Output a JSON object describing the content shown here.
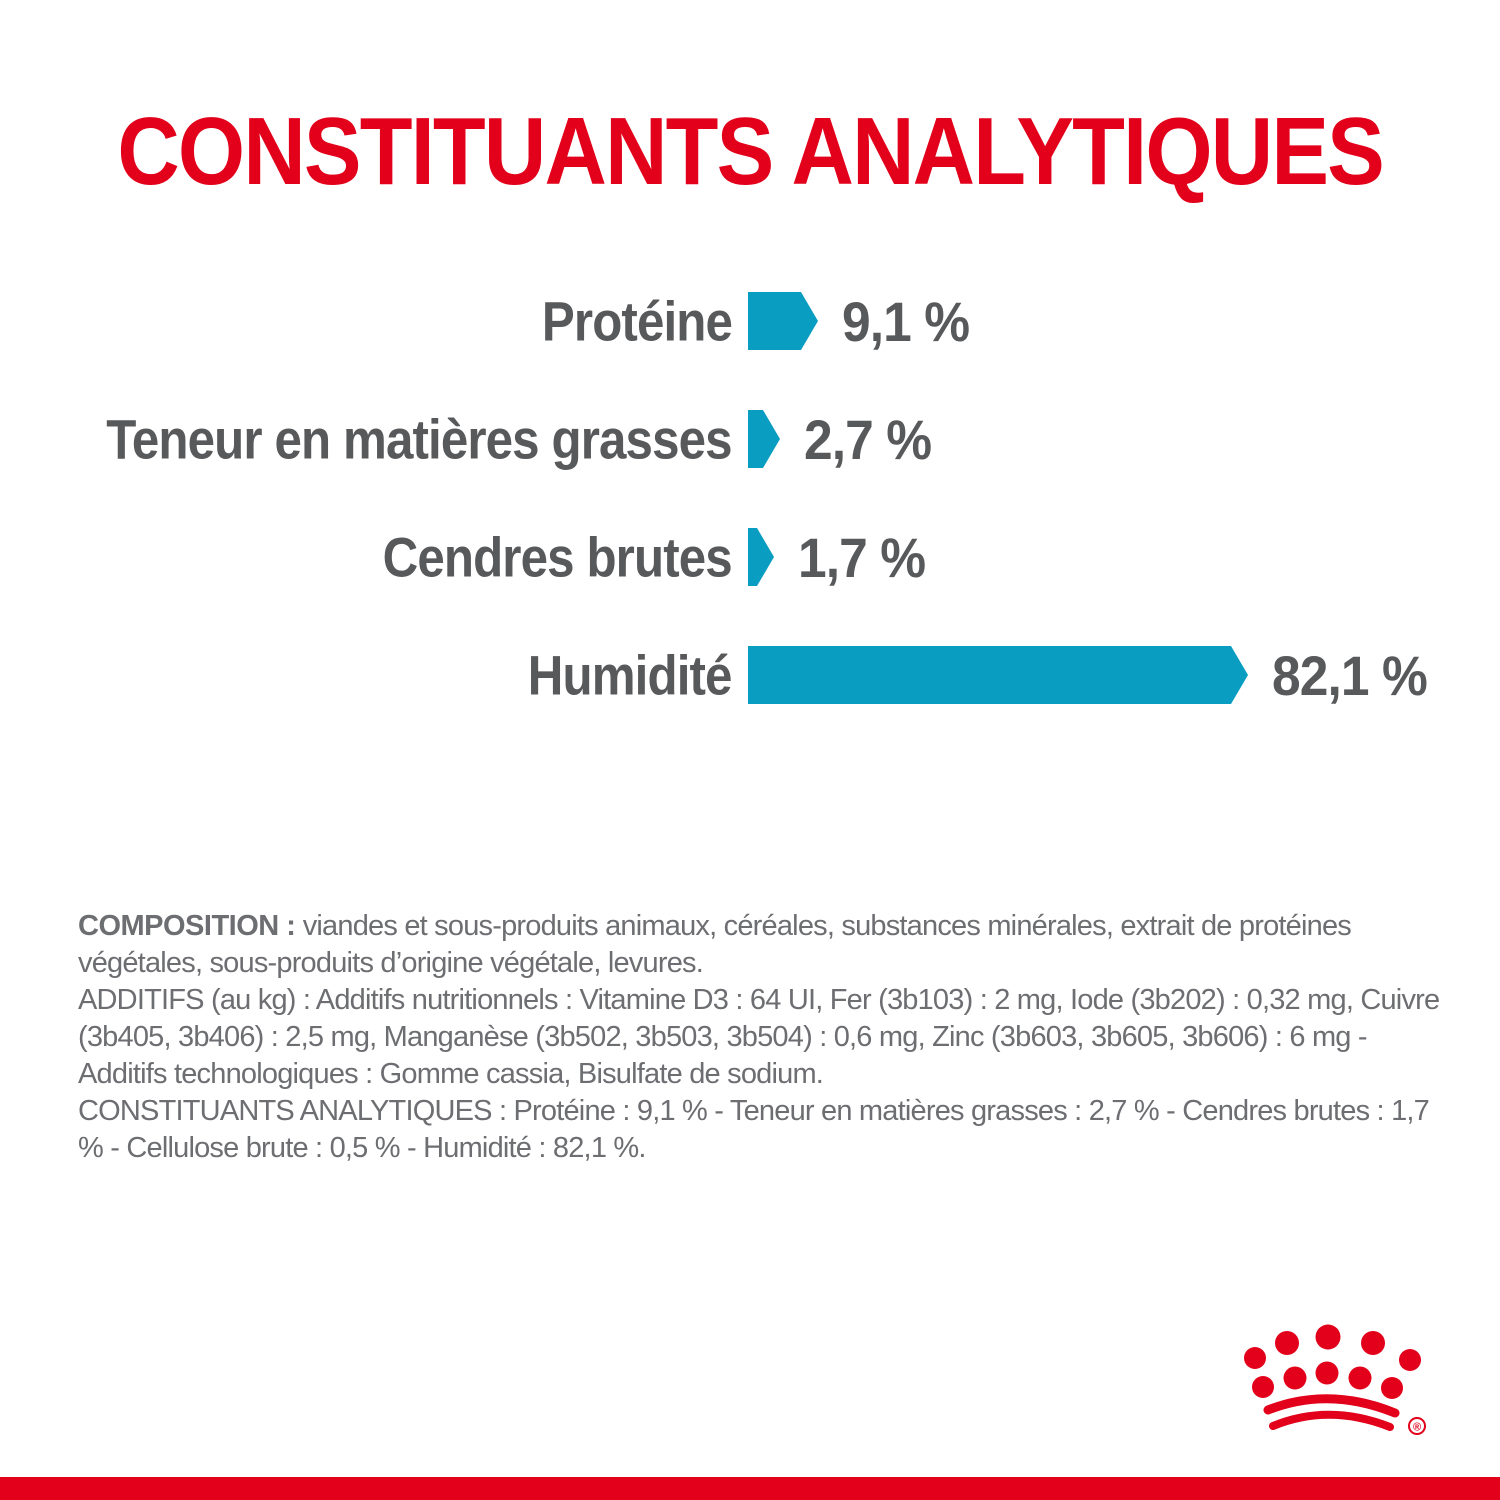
{
  "title": "CONSTITUANTS ANALYTIQUES",
  "chart_data": {
    "type": "bar",
    "orientation": "horizontal",
    "title": "CONSTITUANTS ANALYTIQUES",
    "categories": [
      "Protéine",
      "Teneur en matières grasses",
      "Cendres brutes",
      "Humidité"
    ],
    "values": [
      9.1,
      2.7,
      1.7,
      82.1
    ],
    "value_labels": [
      "9,1 %",
      "2,7 %",
      "1,7 %",
      "82,1 %"
    ],
    "unit": "%",
    "xlim": [
      0,
      100
    ],
    "grid": false,
    "legend": false,
    "bar_color": "#0a9dc2"
  },
  "info": {
    "composition_label": "COMPOSITION :",
    "composition_text": " viandes et sous-produits animaux, céréales, substances minérales, extrait de protéines végétales, sous-produits d’origine végétale, levures.",
    "additifs_text": "ADDITIFS (au kg) : Additifs nutritionnels : Vitamine D3 : 64 UI, Fer (3b103) : 2 mg, Iode (3b202) : 0,32 mg, Cuivre (3b405, 3b406) : 2,5 mg, Manganèse (3b502, 3b503, 3b504) : 0,6 mg, Zinc (3b603, 3b605, 3b606) : 6 mg - Additifs technologiques : Gomme cassia, Bisulfate de sodium.",
    "constituants_text": "CONSTITUANTS ANALYTIQUES : Protéine : 9,1 % - Teneur en matières grasses : 2,7 % - Cendres brutes : 1,7 % - Cellulose brute : 0,5 % - Humidité : 82,1 %."
  },
  "branding": {
    "logo": "royal-canin-crown",
    "registered_mark": "®"
  },
  "colors": {
    "brand_red": "#e2001a",
    "bar_teal": "#0a9dc2",
    "label_gray": "#58595b",
    "text_gray": "#6d6e71"
  }
}
